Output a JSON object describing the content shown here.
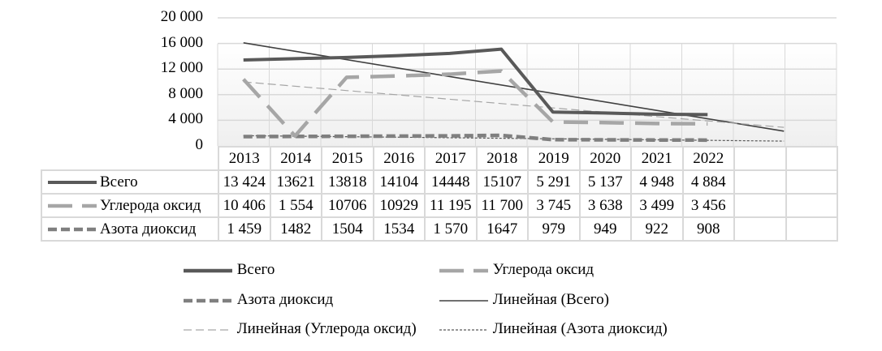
{
  "chart_data": {
    "type": "line",
    "title": "",
    "xlabel": "",
    "ylabel": "",
    "ylim": [
      0,
      20000
    ],
    "yticks": [
      "0",
      "4 000",
      "8 000",
      "12 000",
      "16 000",
      "20 000"
    ],
    "grid": true,
    "legend_position": "bottom",
    "categories": [
      "2013",
      "2014",
      "2015",
      "2016",
      "2017",
      "2018",
      "2019",
      "2020",
      "2021",
      "2022",
      "",
      ""
    ],
    "series": [
      {
        "name": "Всего",
        "style": "solid-thick",
        "color": "#595959",
        "values": [
          13424,
          13621,
          13818,
          14104,
          14448,
          15107,
          5291,
          5137,
          4948,
          4884
        ],
        "labels": [
          "13 424",
          "13621",
          "13818",
          "14104",
          "14448",
          "15107",
          "5 291",
          "5 137",
          "4 948",
          "4 884"
        ]
      },
      {
        "name": "Углерода оксид",
        "style": "long-dash-thick",
        "color": "#a6a6a6",
        "values": [
          10406,
          1554,
          10706,
          10929,
          11195,
          11700,
          3745,
          3638,
          3499,
          3456
        ],
        "labels": [
          "10 406",
          "1 554",
          "10706",
          "10929",
          "11 195",
          "11 700",
          "3 745",
          "3 638",
          "3 499",
          "3 456"
        ]
      },
      {
        "name": "Азота диоксид",
        "style": "short-dash-thick",
        "color": "#7f7f7f",
        "values": [
          1459,
          1482,
          1504,
          1534,
          1570,
          1647,
          979,
          949,
          922,
          908
        ],
        "labels": [
          "1 459",
          "1482",
          "1504",
          "1534",
          "1 570",
          "1647",
          "979",
          "949",
          "922",
          "908"
        ]
      }
    ],
    "trendlines": [
      {
        "name": "Линейная (Всего)",
        "style": "solid-thin",
        "color": "#404040",
        "start": 16100,
        "end": 2300
      },
      {
        "name": "Линейная (Углерода оксид)",
        "style": "dash-thin",
        "color": "#a6a6a6",
        "start": 10000,
        "end": 2900
      },
      {
        "name": "Линейная (Азота диоксид)",
        "style": "dot-thin",
        "color": "#595959",
        "start": 1600,
        "end": 750
      }
    ]
  },
  "table": {
    "rows": [
      {
        "label": "Всего",
        "cells": [
          "13 424",
          "13621",
          "13818",
          "14104",
          "14448",
          "15107",
          "5 291",
          "5 137",
          "4 948",
          "4 884",
          "",
          ""
        ]
      },
      {
        "label": "Углерода оксид",
        "cells": [
          "10 406",
          "1 554",
          "10706",
          "10929",
          "11 195",
          "11 700",
          "3 745",
          "3 638",
          "3 499",
          "3 456",
          "",
          ""
        ]
      },
      {
        "label": "Азота диоксид",
        "cells": [
          "1 459",
          "1482",
          "1504",
          "1534",
          "1 570",
          "1647",
          "979",
          "949",
          "922",
          "908",
          "",
          ""
        ]
      }
    ]
  },
  "legend": {
    "items": [
      {
        "label": "Всего"
      },
      {
        "label": "Углерода оксид"
      },
      {
        "label": "Азота диоксид"
      },
      {
        "label": "Линейная (Всего)"
      },
      {
        "label": "Линейная (Углерода оксид)"
      },
      {
        "label": "Линейная (Азота диоксид)"
      }
    ]
  }
}
